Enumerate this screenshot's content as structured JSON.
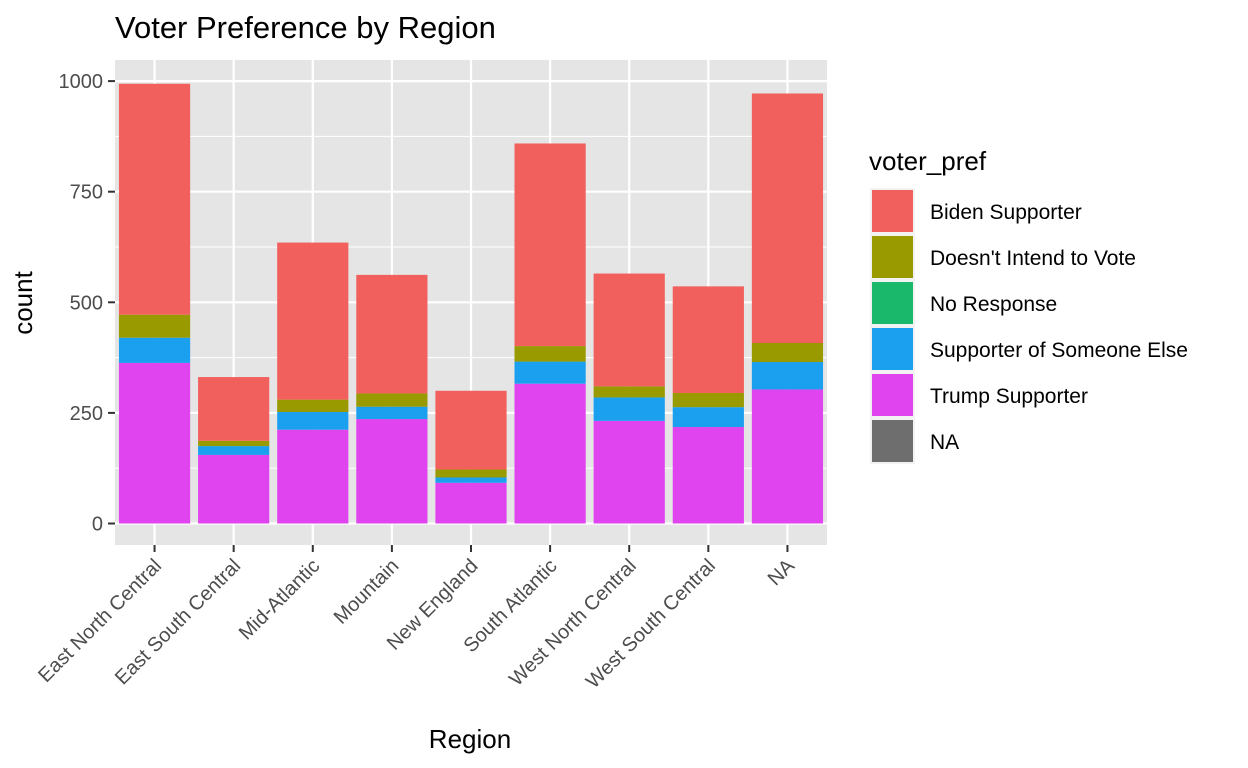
{
  "chart_data": {
    "type": "bar",
    "stacked": true,
    "title": "Voter Preference by Region",
    "xlabel": "Region",
    "ylabel": "count",
    "ylim": [
      0,
      1050
    ],
    "yticks": [
      0,
      250,
      500,
      750,
      1000
    ],
    "ytick_labels": [
      "0",
      "250",
      "500",
      "750",
      "1000"
    ],
    "grid": true,
    "legend_position": "right",
    "legend_title": "voter_pref",
    "categories": [
      "East North Central",
      "East South Central",
      "Mid-Atlantic",
      "Mountain",
      "New England",
      "South Atlantic",
      "West North Central",
      "West South Central",
      "NA"
    ],
    "series": [
      {
        "name": "Trump Supporter",
        "color": "#e044ef",
        "values": [
          363,
          155,
          212,
          236,
          92,
          316,
          232,
          218,
          303
        ]
      },
      {
        "name": "Supporter of Someone Else",
        "color": "#1ba0f0",
        "values": [
          57,
          20,
          40,
          28,
          12,
          50,
          53,
          45,
          62
        ]
      },
      {
        "name": "No Response",
        "color": "#19b86b",
        "values": [
          0,
          0,
          0,
          0,
          0,
          0,
          0,
          0,
          0
        ]
      },
      {
        "name": "Doesn't Intend to Vote",
        "color": "#999900",
        "values": [
          52,
          12,
          28,
          30,
          18,
          35,
          25,
          32,
          43
        ]
      },
      {
        "name": "Biden Supporter",
        "color": "#f2605d",
        "values": [
          522,
          144,
          355,
          268,
          178,
          458,
          255,
          241,
          564
        ]
      },
      {
        "name": "NA",
        "color": "#6e6e6e",
        "values": [
          0,
          0,
          0,
          0,
          0,
          0,
          0,
          0,
          0
        ]
      }
    ],
    "legend_order": [
      "Biden Supporter",
      "Doesn't Intend to Vote",
      "No Response",
      "Supporter of Someone Else",
      "Trump Supporter",
      "NA"
    ]
  },
  "colors": {
    "panel_background": "#e5e5e5",
    "grid_line": "#ffffff",
    "tick_text": "#4d4d4d",
    "tick_mark": "#333333"
  }
}
